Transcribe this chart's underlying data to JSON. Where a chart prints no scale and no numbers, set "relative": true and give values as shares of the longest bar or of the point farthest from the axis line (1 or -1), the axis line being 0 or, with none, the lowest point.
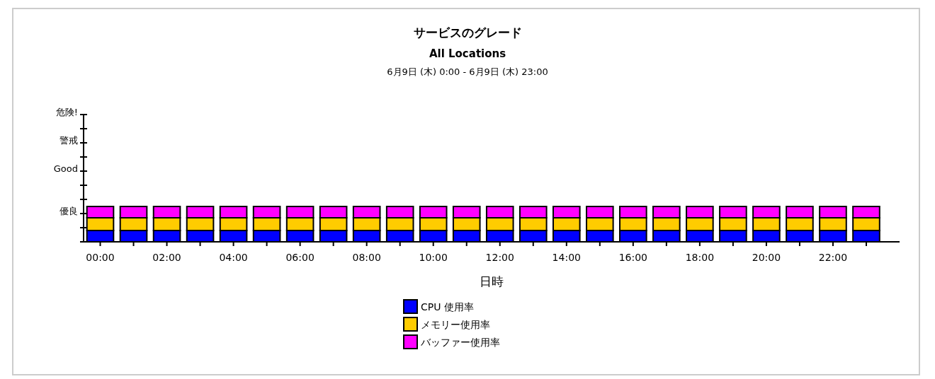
{
  "chart_data": {
    "type": "bar",
    "title": "サービスのグレード",
    "subtitle": "All Locations",
    "annotations": [
      "6月9日 (木) 0:00 - 6月9日 (木) 23:00",
      "優良",
      "Good",
      "警戒",
      "危険!"
    ],
    "relative": true,
    "xlabel": "日時",
    "categories": [
      "00:00",
      null,
      "02:00",
      null,
      "04:00",
      null,
      "06:00",
      null,
      "08:00",
      null,
      "10:00",
      null,
      "12:00",
      null,
      "14:00",
      null,
      "16:00",
      null,
      "18:00",
      null,
      "20:00",
      null,
      "22:00",
      null
    ],
    "stacked": true,
    "series": [
      {
        "name": "CPU 使用率",
        "color": "#0000ff",
        "values": [
          0.32,
          0.32,
          0.32,
          0.32,
          0.32,
          0.32,
          0.32,
          0.32,
          0.32,
          0.32,
          0.32,
          0.32,
          0.32,
          0.32,
          0.32,
          0.32,
          0.32,
          0.32,
          0.32,
          0.32,
          0.32,
          0.32,
          0.32,
          0.32
        ]
      },
      {
        "name": "メモリー使用率",
        "color": "#ffcc00",
        "values": [
          0.36,
          0.36,
          0.36,
          0.36,
          0.36,
          0.36,
          0.36,
          0.36,
          0.36,
          0.36,
          0.36,
          0.36,
          0.36,
          0.36,
          0.36,
          0.36,
          0.36,
          0.36,
          0.36,
          0.36,
          0.36,
          0.36,
          0.36,
          0.36
        ]
      },
      {
        "name": "バッファー使用率",
        "color": "#ff00ff",
        "values": [
          0.32,
          0.32,
          0.32,
          0.32,
          0.32,
          0.32,
          0.32,
          0.32,
          0.32,
          0.32,
          0.32,
          0.32,
          0.32,
          0.32,
          0.32,
          0.32,
          0.32,
          0.32,
          0.32,
          0.32,
          0.32,
          0.32,
          0.32,
          0.32
        ]
      }
    ],
    "legend": "bottom"
  }
}
